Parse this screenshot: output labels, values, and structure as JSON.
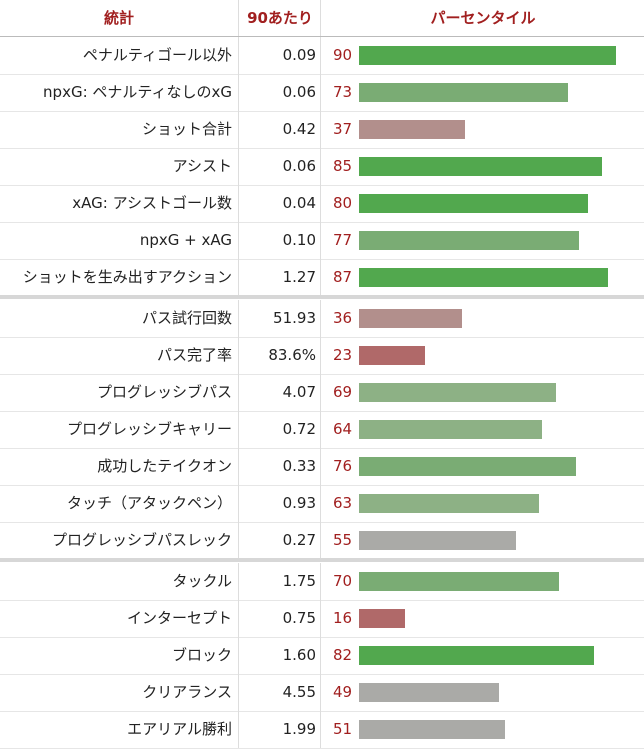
{
  "headers": {
    "stat": "統計",
    "per90": "90あたり",
    "percentile": "パーセンタイル"
  },
  "colors": {
    "header_text": "#a11f1f",
    "percentile_text": "#a11f1f",
    "bar_elite": "#52a84e",
    "bar_good": "#7aac74",
    "bar_above_avg": "#8db185",
    "bar_average": "#aaaaa7",
    "bar_below_avg": "#b28f8c",
    "bar_poor": "#b06969"
  },
  "groups": [
    {
      "rows": [
        {
          "stat": "ペナルティゴール以外",
          "per90": "0.09",
          "percentile": 90
        },
        {
          "stat": "npxG: ペナルティなしのxG",
          "per90": "0.06",
          "percentile": 73
        },
        {
          "stat": "ショット合計",
          "per90": "0.42",
          "percentile": 37
        },
        {
          "stat": "アシスト",
          "per90": "0.06",
          "percentile": 85
        },
        {
          "stat": "xAG: アシストゴール数",
          "per90": "0.04",
          "percentile": 80
        },
        {
          "stat": "npxG + xAG",
          "per90": "0.10",
          "percentile": 77
        },
        {
          "stat": "ショットを生み出すアクション",
          "per90": "1.27",
          "percentile": 87
        }
      ]
    },
    {
      "rows": [
        {
          "stat": "パス試行回数",
          "per90": "51.93",
          "percentile": 36
        },
        {
          "stat": "パス完了率",
          "per90": "83.6%",
          "percentile": 23
        },
        {
          "stat": "プログレッシブパス",
          "per90": "4.07",
          "percentile": 69
        },
        {
          "stat": "プログレッシブキャリー",
          "per90": "0.72",
          "percentile": 64
        },
        {
          "stat": "成功したテイクオン",
          "per90": "0.33",
          "percentile": 76
        },
        {
          "stat": "タッチ（アタックペン）",
          "per90": "0.93",
          "percentile": 63
        },
        {
          "stat": "プログレッシブパスレック",
          "per90": "0.27",
          "percentile": 55
        }
      ]
    },
    {
      "rows": [
        {
          "stat": "タックル",
          "per90": "1.75",
          "percentile": 70
        },
        {
          "stat": "インターセプト",
          "per90": "0.75",
          "percentile": 16
        },
        {
          "stat": "ブロック",
          "per90": "1.60",
          "percentile": 82
        },
        {
          "stat": "クリアランス",
          "per90": "4.55",
          "percentile": 49
        },
        {
          "stat": "エアリアル勝利",
          "per90": "1.99",
          "percentile": 51
        }
      ]
    }
  ],
  "chart_data": {
    "type": "bar",
    "orientation": "horizontal",
    "xlim": [
      0,
      100
    ],
    "categories": [
      "ペナルティゴール以外",
      "npxG: ペナルティなしのxG",
      "ショット合計",
      "アシスト",
      "xAG: アシストゴール数",
      "npxG + xAG",
      "ショットを生み出すアクション",
      "パス試行回数",
      "パス完了率",
      "プログレッシブパス",
      "プログレッシブキャリー",
      "成功したテイクオン",
      "タッチ（アタックペン）",
      "プログレッシブパスレック",
      "タックル",
      "インターセプト",
      "ブロック",
      "クリアランス",
      "エアリアル勝利"
    ],
    "values": [
      90,
      73,
      37,
      85,
      80,
      77,
      87,
      36,
      23,
      69,
      64,
      76,
      63,
      55,
      70,
      16,
      82,
      49,
      51
    ],
    "per90": [
      "0.09",
      "0.06",
      "0.42",
      "0.06",
      "0.04",
      "0.10",
      "1.27",
      "51.93",
      "83.6%",
      "4.07",
      "0.72",
      "0.33",
      "0.93",
      "0.27",
      "1.75",
      "0.75",
      "1.60",
      "4.55",
      "1.99"
    ]
  }
}
